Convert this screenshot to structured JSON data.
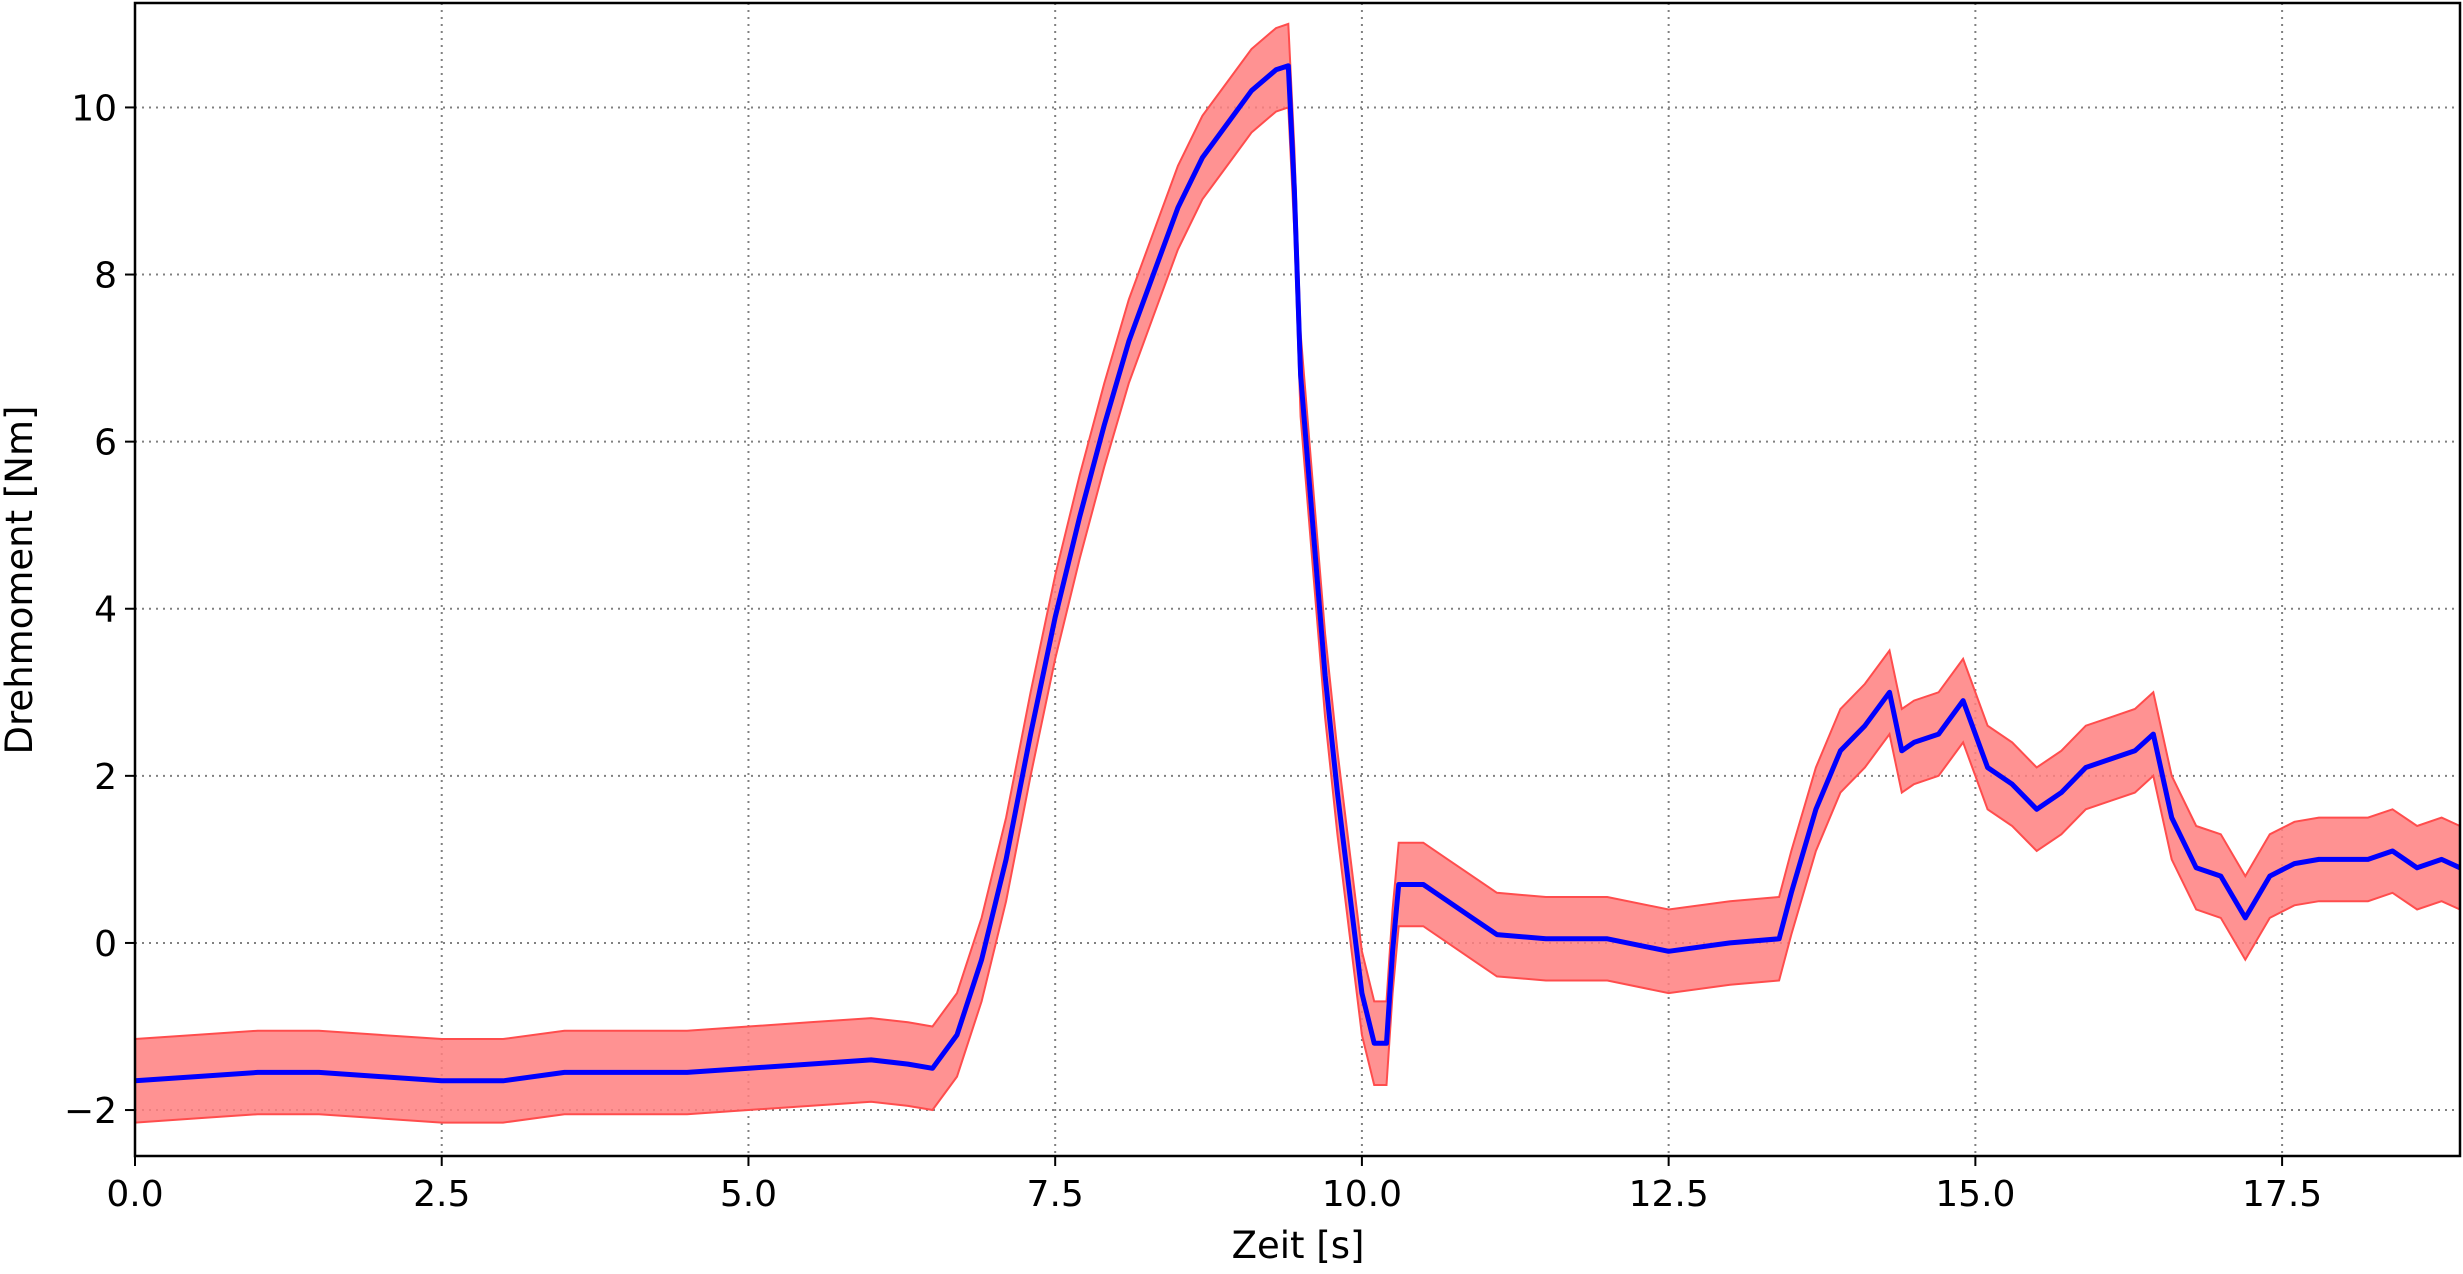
{
  "chart_data": {
    "type": "line",
    "xlabel": "Zeit [s]",
    "ylabel": "Drehmoment [Nm]",
    "xlim": [
      0,
      18.95
    ],
    "ylim": [
      -2.55,
      11.25
    ],
    "xticks": [
      0.0,
      2.5,
      5.0,
      7.5,
      10.0,
      12.5,
      15.0,
      17.5
    ],
    "xtick_labels": [
      "0.0",
      "2.5",
      "5.0",
      "7.5",
      "10.0",
      "12.5",
      "15.0",
      "17.5"
    ],
    "yticks": [
      -2,
      0,
      2,
      4,
      6,
      8,
      10
    ],
    "ytick_labels": [
      "−2",
      "0",
      "2",
      "4",
      "6",
      "8",
      "10"
    ],
    "grid": true,
    "grid_style": "dotted",
    "colors": {
      "mean_line": "#0000ff",
      "band_fill": "#ff7f7f",
      "band_edge": "#ff4d4d",
      "grid": "#808080"
    },
    "series": [
      {
        "role": "mean",
        "x": [
          0.0,
          0.5,
          1.0,
          1.5,
          2.0,
          2.5,
          3.0,
          3.5,
          4.0,
          4.5,
          5.0,
          5.5,
          6.0,
          6.3,
          6.5,
          6.7,
          6.9,
          7.1,
          7.3,
          7.5,
          7.7,
          7.9,
          8.1,
          8.3,
          8.5,
          8.7,
          8.9,
          9.1,
          9.3,
          9.4,
          9.45,
          9.5,
          9.6,
          9.7,
          9.8,
          9.9,
          10.0,
          10.1,
          10.2,
          10.25,
          10.3,
          10.5,
          10.7,
          10.9,
          11.1,
          11.5,
          12.0,
          12.5,
          13.0,
          13.4,
          13.5,
          13.7,
          13.9,
          14.1,
          14.3,
          14.4,
          14.5,
          14.7,
          14.9,
          15.1,
          15.3,
          15.5,
          15.7,
          15.9,
          16.1,
          16.3,
          16.45,
          16.6,
          16.8,
          17.0,
          17.2,
          17.4,
          17.6,
          17.8,
          18.0,
          18.2,
          18.4,
          18.6,
          18.8,
          18.95
        ],
        "y": [
          -1.65,
          -1.6,
          -1.55,
          -1.55,
          -1.6,
          -1.65,
          -1.65,
          -1.55,
          -1.55,
          -1.55,
          -1.5,
          -1.45,
          -1.4,
          -1.45,
          -1.5,
          -1.1,
          -0.2,
          1.0,
          2.5,
          3.9,
          5.1,
          6.2,
          7.2,
          8.0,
          8.8,
          9.4,
          9.8,
          10.2,
          10.45,
          10.5,
          9.0,
          6.8,
          5.0,
          3.2,
          1.8,
          0.6,
          -0.6,
          -1.2,
          -1.2,
          -0.1,
          0.7,
          0.7,
          0.5,
          0.3,
          0.1,
          0.05,
          0.05,
          -0.1,
          0.0,
          0.05,
          0.6,
          1.6,
          2.3,
          2.6,
          3.0,
          2.3,
          2.4,
          2.5,
          2.9,
          2.1,
          1.9,
          1.6,
          1.8,
          2.1,
          2.2,
          2.3,
          2.5,
          1.5,
          0.9,
          0.8,
          0.3,
          0.8,
          0.95,
          1.0,
          1.0,
          1.0,
          1.1,
          0.9,
          1.0,
          0.9
        ]
      },
      {
        "role": "band",
        "x": [
          0.0,
          0.5,
          1.0,
          1.5,
          2.0,
          2.5,
          3.0,
          3.5,
          4.0,
          4.5,
          5.0,
          5.5,
          6.0,
          6.3,
          6.5,
          6.7,
          6.9,
          7.1,
          7.3,
          7.5,
          7.7,
          7.9,
          8.1,
          8.3,
          8.5,
          8.7,
          8.9,
          9.1,
          9.3,
          9.4,
          9.45,
          9.5,
          9.6,
          9.7,
          9.8,
          9.9,
          10.0,
          10.1,
          10.2,
          10.25,
          10.3,
          10.5,
          10.7,
          10.9,
          11.1,
          11.5,
          12.0,
          12.5,
          13.0,
          13.4,
          13.5,
          13.7,
          13.9,
          14.1,
          14.3,
          14.4,
          14.5,
          14.7,
          14.9,
          15.1,
          15.3,
          15.5,
          15.7,
          15.9,
          16.1,
          16.3,
          16.45,
          16.6,
          16.8,
          17.0,
          17.2,
          17.4,
          17.6,
          17.8,
          18.0,
          18.2,
          18.4,
          18.6,
          18.8,
          18.95
        ],
        "upper": [
          -1.15,
          -1.1,
          -1.05,
          -1.05,
          -1.1,
          -1.15,
          -1.15,
          -1.05,
          -1.05,
          -1.05,
          -1.0,
          -0.95,
          -0.9,
          -0.95,
          -1.0,
          -0.6,
          0.3,
          1.5,
          3.0,
          4.4,
          5.6,
          6.7,
          7.7,
          8.5,
          9.3,
          9.9,
          10.3,
          10.7,
          10.95,
          11.0,
          9.5,
          7.3,
          5.5,
          3.7,
          2.3,
          1.1,
          -0.1,
          -0.7,
          -0.7,
          0.4,
          1.2,
          1.2,
          1.0,
          0.8,
          0.6,
          0.55,
          0.55,
          0.4,
          0.5,
          0.55,
          1.1,
          2.1,
          2.8,
          3.1,
          3.5,
          2.8,
          2.9,
          3.0,
          3.4,
          2.6,
          2.4,
          2.1,
          2.3,
          2.6,
          2.7,
          2.8,
          3.0,
          2.0,
          1.4,
          1.3,
          0.8,
          1.3,
          1.45,
          1.5,
          1.5,
          1.5,
          1.6,
          1.4,
          1.5,
          1.4
        ],
        "lower": [
          -2.15,
          -2.1,
          -2.05,
          -2.05,
          -2.1,
          -2.15,
          -2.15,
          -2.05,
          -2.05,
          -2.05,
          -2.0,
          -1.95,
          -1.9,
          -1.95,
          -2.0,
          -1.6,
          -0.7,
          0.5,
          2.0,
          3.4,
          4.6,
          5.7,
          6.7,
          7.5,
          8.3,
          8.9,
          9.3,
          9.7,
          9.95,
          10.0,
          8.5,
          6.3,
          4.5,
          2.7,
          1.3,
          0.1,
          -1.1,
          -1.7,
          -1.7,
          -0.6,
          0.2,
          0.2,
          0.0,
          -0.2,
          -0.4,
          -0.45,
          -0.45,
          -0.6,
          -0.5,
          -0.45,
          0.1,
          1.1,
          1.8,
          2.1,
          2.5,
          1.8,
          1.9,
          2.0,
          2.4,
          1.6,
          1.4,
          1.1,
          1.3,
          1.6,
          1.7,
          1.8,
          2.0,
          1.0,
          0.4,
          0.3,
          -0.2,
          0.3,
          0.45,
          0.5,
          0.5,
          0.5,
          0.6,
          0.4,
          0.5,
          0.4
        ]
      }
    ]
  }
}
